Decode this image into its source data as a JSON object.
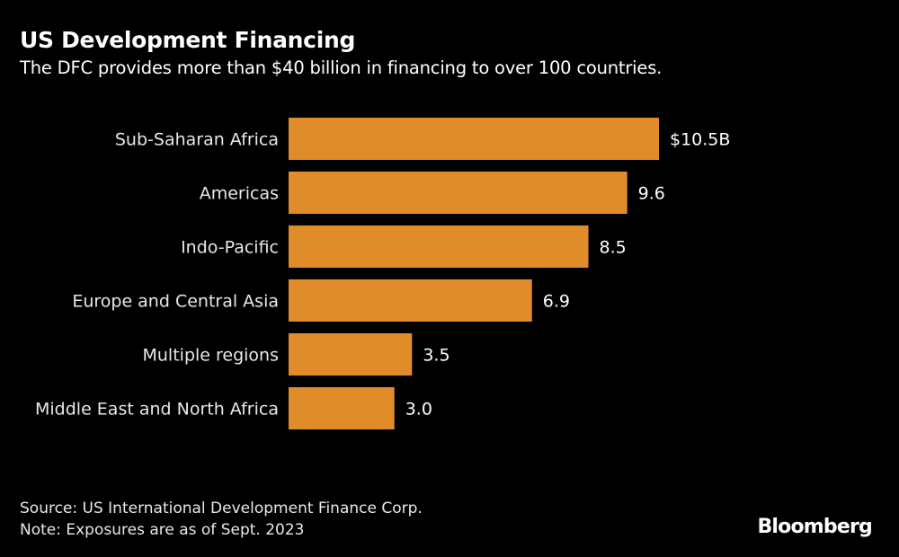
{
  "chart_data": {
    "type": "bar",
    "orientation": "horizontal",
    "title": "US Development Financing",
    "subtitle": "The DFC provides more than $40 billion in financing to over 100 countries.",
    "categories": [
      "Sub-Saharan Africa",
      "Americas",
      "Indo-Pacific",
      "Europe and Central Asia",
      "Multiple regions",
      "Middle East and North Africa"
    ],
    "values": [
      10.5,
      9.6,
      8.5,
      6.9,
      3.5,
      3.0
    ],
    "data_labels": [
      "$10.5B",
      "9.6",
      "8.5",
      "6.9",
      "3.5",
      "3.0"
    ],
    "unit": "billion USD",
    "xlim": [
      0,
      10.5
    ],
    "grid": false,
    "bar_color": "#E08C2A"
  },
  "footer": {
    "source": "Source: US International Development Finance Corp.",
    "note": "Note: Exposures are as of Sept. 2023",
    "brand": "Bloomberg"
  }
}
